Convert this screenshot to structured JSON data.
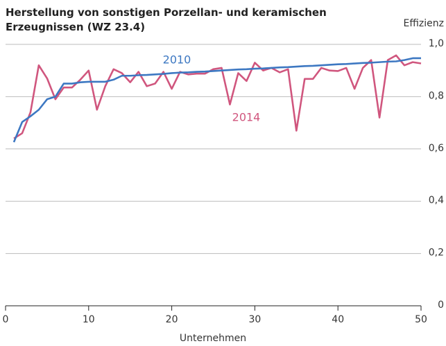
{
  "chart_data": {
    "type": "line",
    "title": "Herstellung von sonstigen Porzellan- und keramischen Erzeugnissen (WZ 23.4)",
    "y_label": "Effizienz",
    "x_label": "Unternehmen",
    "x": [
      1,
      2,
      3,
      4,
      5,
      6,
      7,
      8,
      9,
      10,
      11,
      12,
      13,
      14,
      15,
      16,
      17,
      18,
      19,
      20,
      21,
      22,
      23,
      24,
      25,
      26,
      27,
      28,
      29,
      30,
      31,
      32,
      33,
      34,
      35,
      36,
      37,
      38,
      39,
      40,
      41,
      42,
      43,
      44,
      45,
      46,
      47,
      48,
      49,
      50
    ],
    "series": [
      {
        "name": "2010",
        "color": "#3d78c2",
        "values": [
          0.626,
          0.703,
          0.725,
          0.75,
          0.79,
          0.8,
          0.85,
          0.85,
          0.855,
          0.857,
          0.857,
          0.857,
          0.865,
          0.88,
          0.88,
          0.882,
          0.883,
          0.885,
          0.887,
          0.89,
          0.892,
          0.893,
          0.895,
          0.896,
          0.898,
          0.9,
          0.902,
          0.904,
          0.905,
          0.907,
          0.908,
          0.91,
          0.912,
          0.913,
          0.915,
          0.917,
          0.918,
          0.92,
          0.922,
          0.924,
          0.925,
          0.927,
          0.929,
          0.93,
          0.932,
          0.934,
          0.935,
          0.94,
          0.947,
          0.947
        ]
      },
      {
        "name": "2014",
        "color": "#d0567e",
        "values": [
          0.64,
          0.66,
          0.74,
          0.92,
          0.87,
          0.79,
          0.835,
          0.835,
          0.865,
          0.9,
          0.75,
          0.84,
          0.905,
          0.89,
          0.855,
          0.895,
          0.84,
          0.85,
          0.895,
          0.83,
          0.895,
          0.885,
          0.888,
          0.888,
          0.905,
          0.91,
          0.77,
          0.89,
          0.86,
          0.93,
          0.9,
          0.91,
          0.893,
          0.905,
          0.67,
          0.868,
          0.868,
          0.91,
          0.9,
          0.898,
          0.91,
          0.83,
          0.91,
          0.94,
          0.72,
          0.94,
          0.958,
          0.92,
          0.932,
          0.927
        ]
      }
    ],
    "xlim": [
      0,
      50
    ],
    "xticks": [
      0,
      10,
      20,
      30,
      40,
      50
    ],
    "ylim": [
      0,
      1
    ],
    "yticks": [
      0,
      {
        "value": 0.2,
        "label": "0,2"
      },
      {
        "value": 0.4,
        "label": "0,4"
      },
      {
        "value": 0.6,
        "label": "0,6"
      },
      {
        "value": 0.8,
        "label": "0,8"
      },
      {
        "value": 1,
        "label": "1,0"
      }
    ],
    "grid": true
  }
}
